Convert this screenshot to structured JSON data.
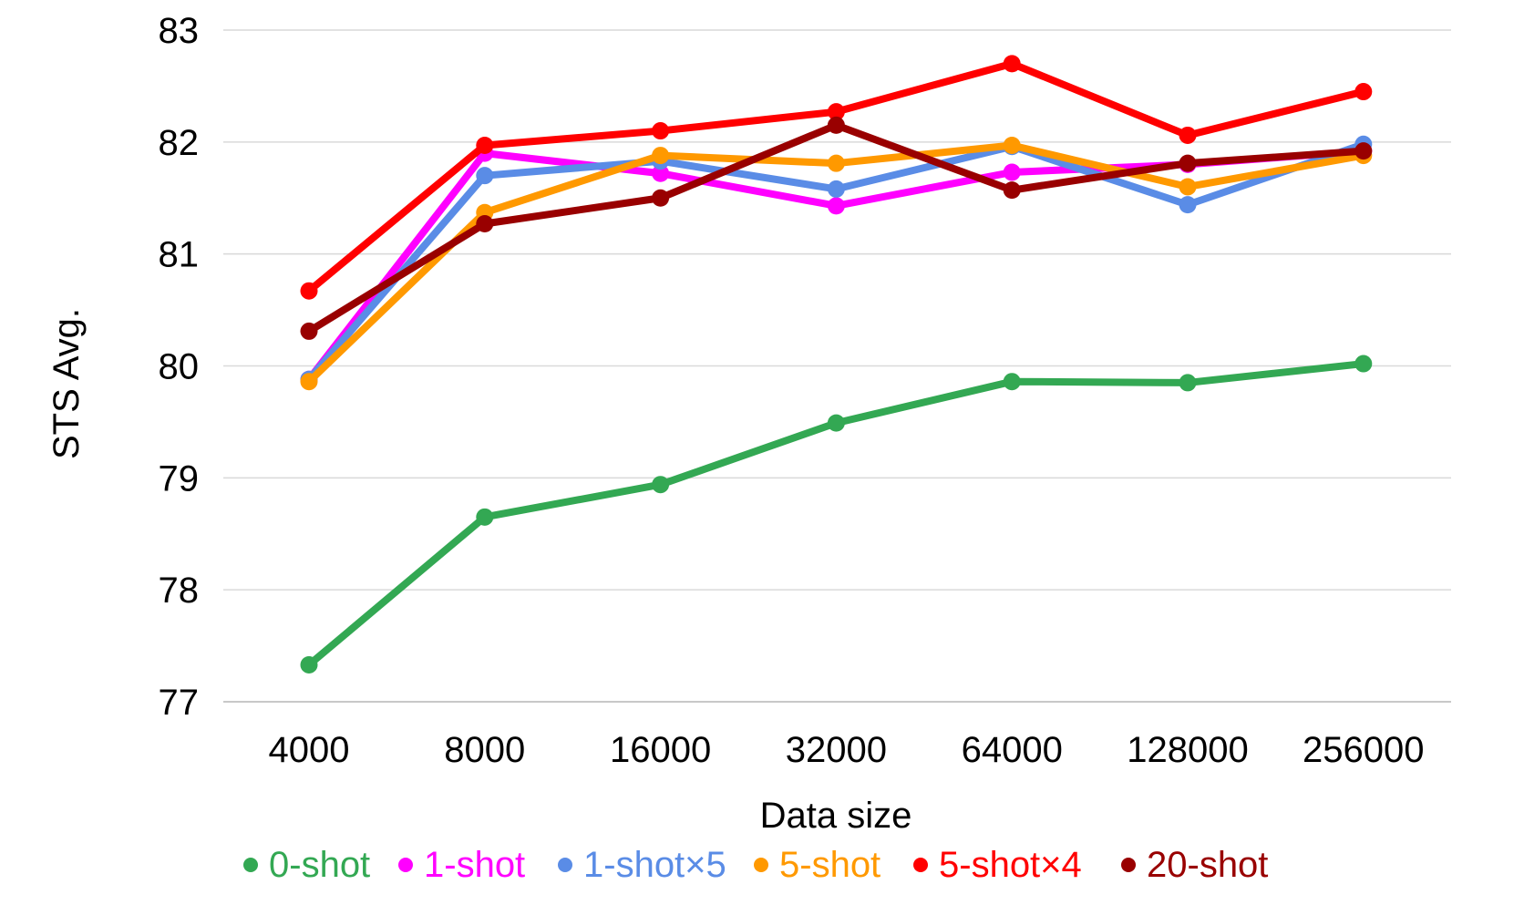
{
  "chart_data": {
    "type": "line",
    "xlabel": "Data size",
    "ylabel": "STS Avg.",
    "categories": [
      "4000",
      "8000",
      "16000",
      "32000",
      "64000",
      "128000",
      "256000"
    ],
    "ylim": [
      77,
      83
    ],
    "yticks": [
      77,
      78,
      79,
      80,
      81,
      82,
      83
    ],
    "grid": true,
    "legend_position": "bottom",
    "series": [
      {
        "name": "0-shot",
        "color": "#33a853",
        "values": [
          77.33,
          78.65,
          78.94,
          79.49,
          79.86,
          79.85,
          80.02
        ]
      },
      {
        "name": "1-shot",
        "color": "#ff00ff",
        "values": [
          79.88,
          81.9,
          81.72,
          81.43,
          81.73,
          81.8,
          81.92
        ]
      },
      {
        "name": "1-shot×5",
        "color": "#5a8ce6",
        "values": [
          79.88,
          81.7,
          81.83,
          81.58,
          81.96,
          81.44,
          81.98
        ]
      },
      {
        "name": "5-shot",
        "color": "#ff9900",
        "values": [
          79.86,
          81.37,
          81.88,
          81.81,
          81.97,
          81.6,
          81.88
        ]
      },
      {
        "name": "5-shot×4",
        "color": "#ff0000",
        "values": [
          80.67,
          81.97,
          82.1,
          82.27,
          82.7,
          82.06,
          82.45
        ]
      },
      {
        "name": "20-shot",
        "color": "#990000",
        "values": [
          80.31,
          81.27,
          81.5,
          82.15,
          81.57,
          81.81,
          81.92
        ]
      }
    ]
  }
}
